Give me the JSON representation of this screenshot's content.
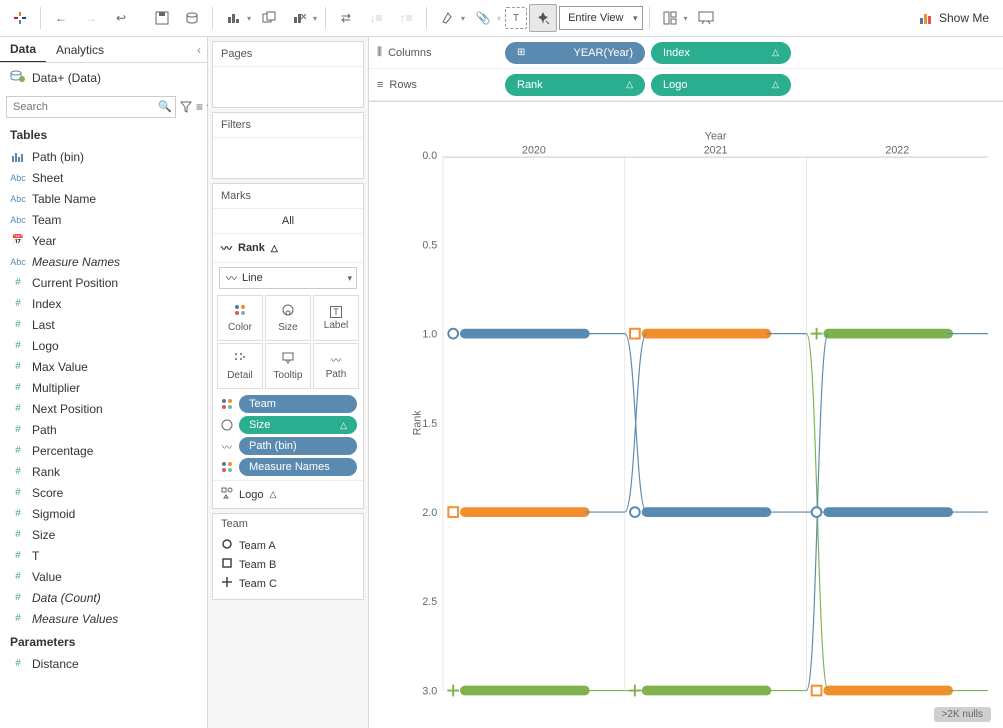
{
  "toolbar": {
    "view_dropdown": "Entire View",
    "showme": "Show Me"
  },
  "left_panel": {
    "tab_data": "Data",
    "tab_analytics": "Analytics",
    "datasource": "Data+ (Data)",
    "search_placeholder": "Search",
    "tables_header": "Tables",
    "parameters_header": "Parameters",
    "fields": [
      {
        "icon": "bin",
        "cls": "ico-dim",
        "label": "Path (bin)"
      },
      {
        "icon": "abc",
        "cls": "ico-dim",
        "label": "Sheet"
      },
      {
        "icon": "abc",
        "cls": "ico-dim",
        "label": "Table Name"
      },
      {
        "icon": "abc",
        "cls": "ico-dim",
        "label": "Team"
      },
      {
        "icon": "date",
        "cls": "ico-dim",
        "label": "Year"
      },
      {
        "icon": "abc",
        "cls": "ico-dim",
        "label": "Measure Names",
        "italic": true
      },
      {
        "icon": "num",
        "cls": "ico-meas",
        "label": "Current Position"
      },
      {
        "icon": "num",
        "cls": "ico-meas",
        "label": "Index"
      },
      {
        "icon": "num",
        "cls": "ico-meas",
        "label": "Last"
      },
      {
        "icon": "num",
        "cls": "ico-meas",
        "label": "Logo"
      },
      {
        "icon": "num",
        "cls": "ico-meas",
        "label": "Max Value"
      },
      {
        "icon": "num",
        "cls": "ico-meas",
        "label": "Multiplier"
      },
      {
        "icon": "num",
        "cls": "ico-meas",
        "label": "Next Position"
      },
      {
        "icon": "num",
        "cls": "ico-meas",
        "label": "Path"
      },
      {
        "icon": "num",
        "cls": "ico-meas",
        "label": "Percentage"
      },
      {
        "icon": "num",
        "cls": "ico-meas",
        "label": "Rank"
      },
      {
        "icon": "num",
        "cls": "ico-meas",
        "label": "Score"
      },
      {
        "icon": "num",
        "cls": "ico-meas",
        "label": "Sigmoid"
      },
      {
        "icon": "num",
        "cls": "ico-meas",
        "label": "Size"
      },
      {
        "icon": "num",
        "cls": "ico-meas",
        "label": "T"
      },
      {
        "icon": "num",
        "cls": "ico-meas",
        "label": "Value"
      },
      {
        "icon": "num",
        "cls": "ico-meas",
        "label": "Data (Count)",
        "italic": true
      },
      {
        "icon": "num",
        "cls": "ico-meas",
        "label": "Measure Values",
        "italic": true
      }
    ],
    "parameters": [
      {
        "icon": "num",
        "cls": "ico-meas",
        "label": "Distance"
      }
    ]
  },
  "mid_panel": {
    "pages": "Pages",
    "filters": "Filters",
    "marks": "Marks",
    "all": "All",
    "rank_section": "Rank",
    "mark_type": "Line",
    "cells": {
      "color": "Color",
      "size": "Size",
      "label": "Label",
      "detail": "Detail",
      "tooltip": "Tooltip",
      "path": "Path"
    },
    "mark_pills": [
      {
        "icon": "color",
        "label": "Team",
        "cls": "pill-blue"
      },
      {
        "icon": "size",
        "label": "Size",
        "cls": "pill-teal",
        "delta": true
      },
      {
        "icon": "path",
        "label": "Path (bin)",
        "cls": "pill-blue"
      },
      {
        "icon": "color",
        "label": "Measure Names",
        "cls": "pill-blue"
      }
    ],
    "logo_section": "Logo",
    "legend_title": "Team",
    "legend_items": [
      {
        "shape": "circle",
        "label": "Team A"
      },
      {
        "shape": "square",
        "label": "Team B"
      },
      {
        "shape": "plus",
        "label": "Team C"
      }
    ]
  },
  "shelves": {
    "columns_label": "Columns",
    "rows_label": "Rows",
    "columns_pills": [
      {
        "label": "YEAR(Year)",
        "cls": "sp-blue",
        "plus": true
      },
      {
        "label": "Index",
        "cls": "sp-teal",
        "delta": true
      }
    ],
    "rows_pills": [
      {
        "label": "Rank",
        "cls": "sp-teal",
        "delta": true
      },
      {
        "label": "Logo",
        "cls": "sp-teal",
        "delta": true
      }
    ]
  },
  "chart": {
    "title": "Year",
    "x_years": [
      "2020",
      "2021",
      "2022"
    ],
    "y_ticks": [
      0.0,
      0.5,
      1.0,
      1.5,
      2.0,
      2.5,
      3.0
    ],
    "y_min": 0.0,
    "y_max": 3.0,
    "colors": {
      "blue": "#5b8ab0",
      "orange": "#f28e2b",
      "green": "#7fb24f"
    },
    "series": [
      {
        "team": "A",
        "shape": "circle",
        "ranks": [
          1,
          2,
          2
        ]
      },
      {
        "team": "B",
        "shape": "square",
        "ranks": [
          2,
          1,
          3
        ]
      },
      {
        "team": "C",
        "shape": "plus",
        "ranks": [
          3,
          3,
          1
        ]
      }
    ],
    "segment_colors": {
      "1": {
        "2020": "blue",
        "2021": "orange",
        "2022": "green"
      },
      "2": {
        "2020": "orange",
        "2021": "blue",
        "2022": "blue"
      },
      "3": {
        "2020": "green",
        "2021": "green",
        "2022": "orange"
      }
    },
    "thin_color": {
      "1": "blue",
      "2": "blue",
      "3": "green"
    },
    "ylabel": "Rank",
    "nulls_label": ">2K nulls"
  }
}
